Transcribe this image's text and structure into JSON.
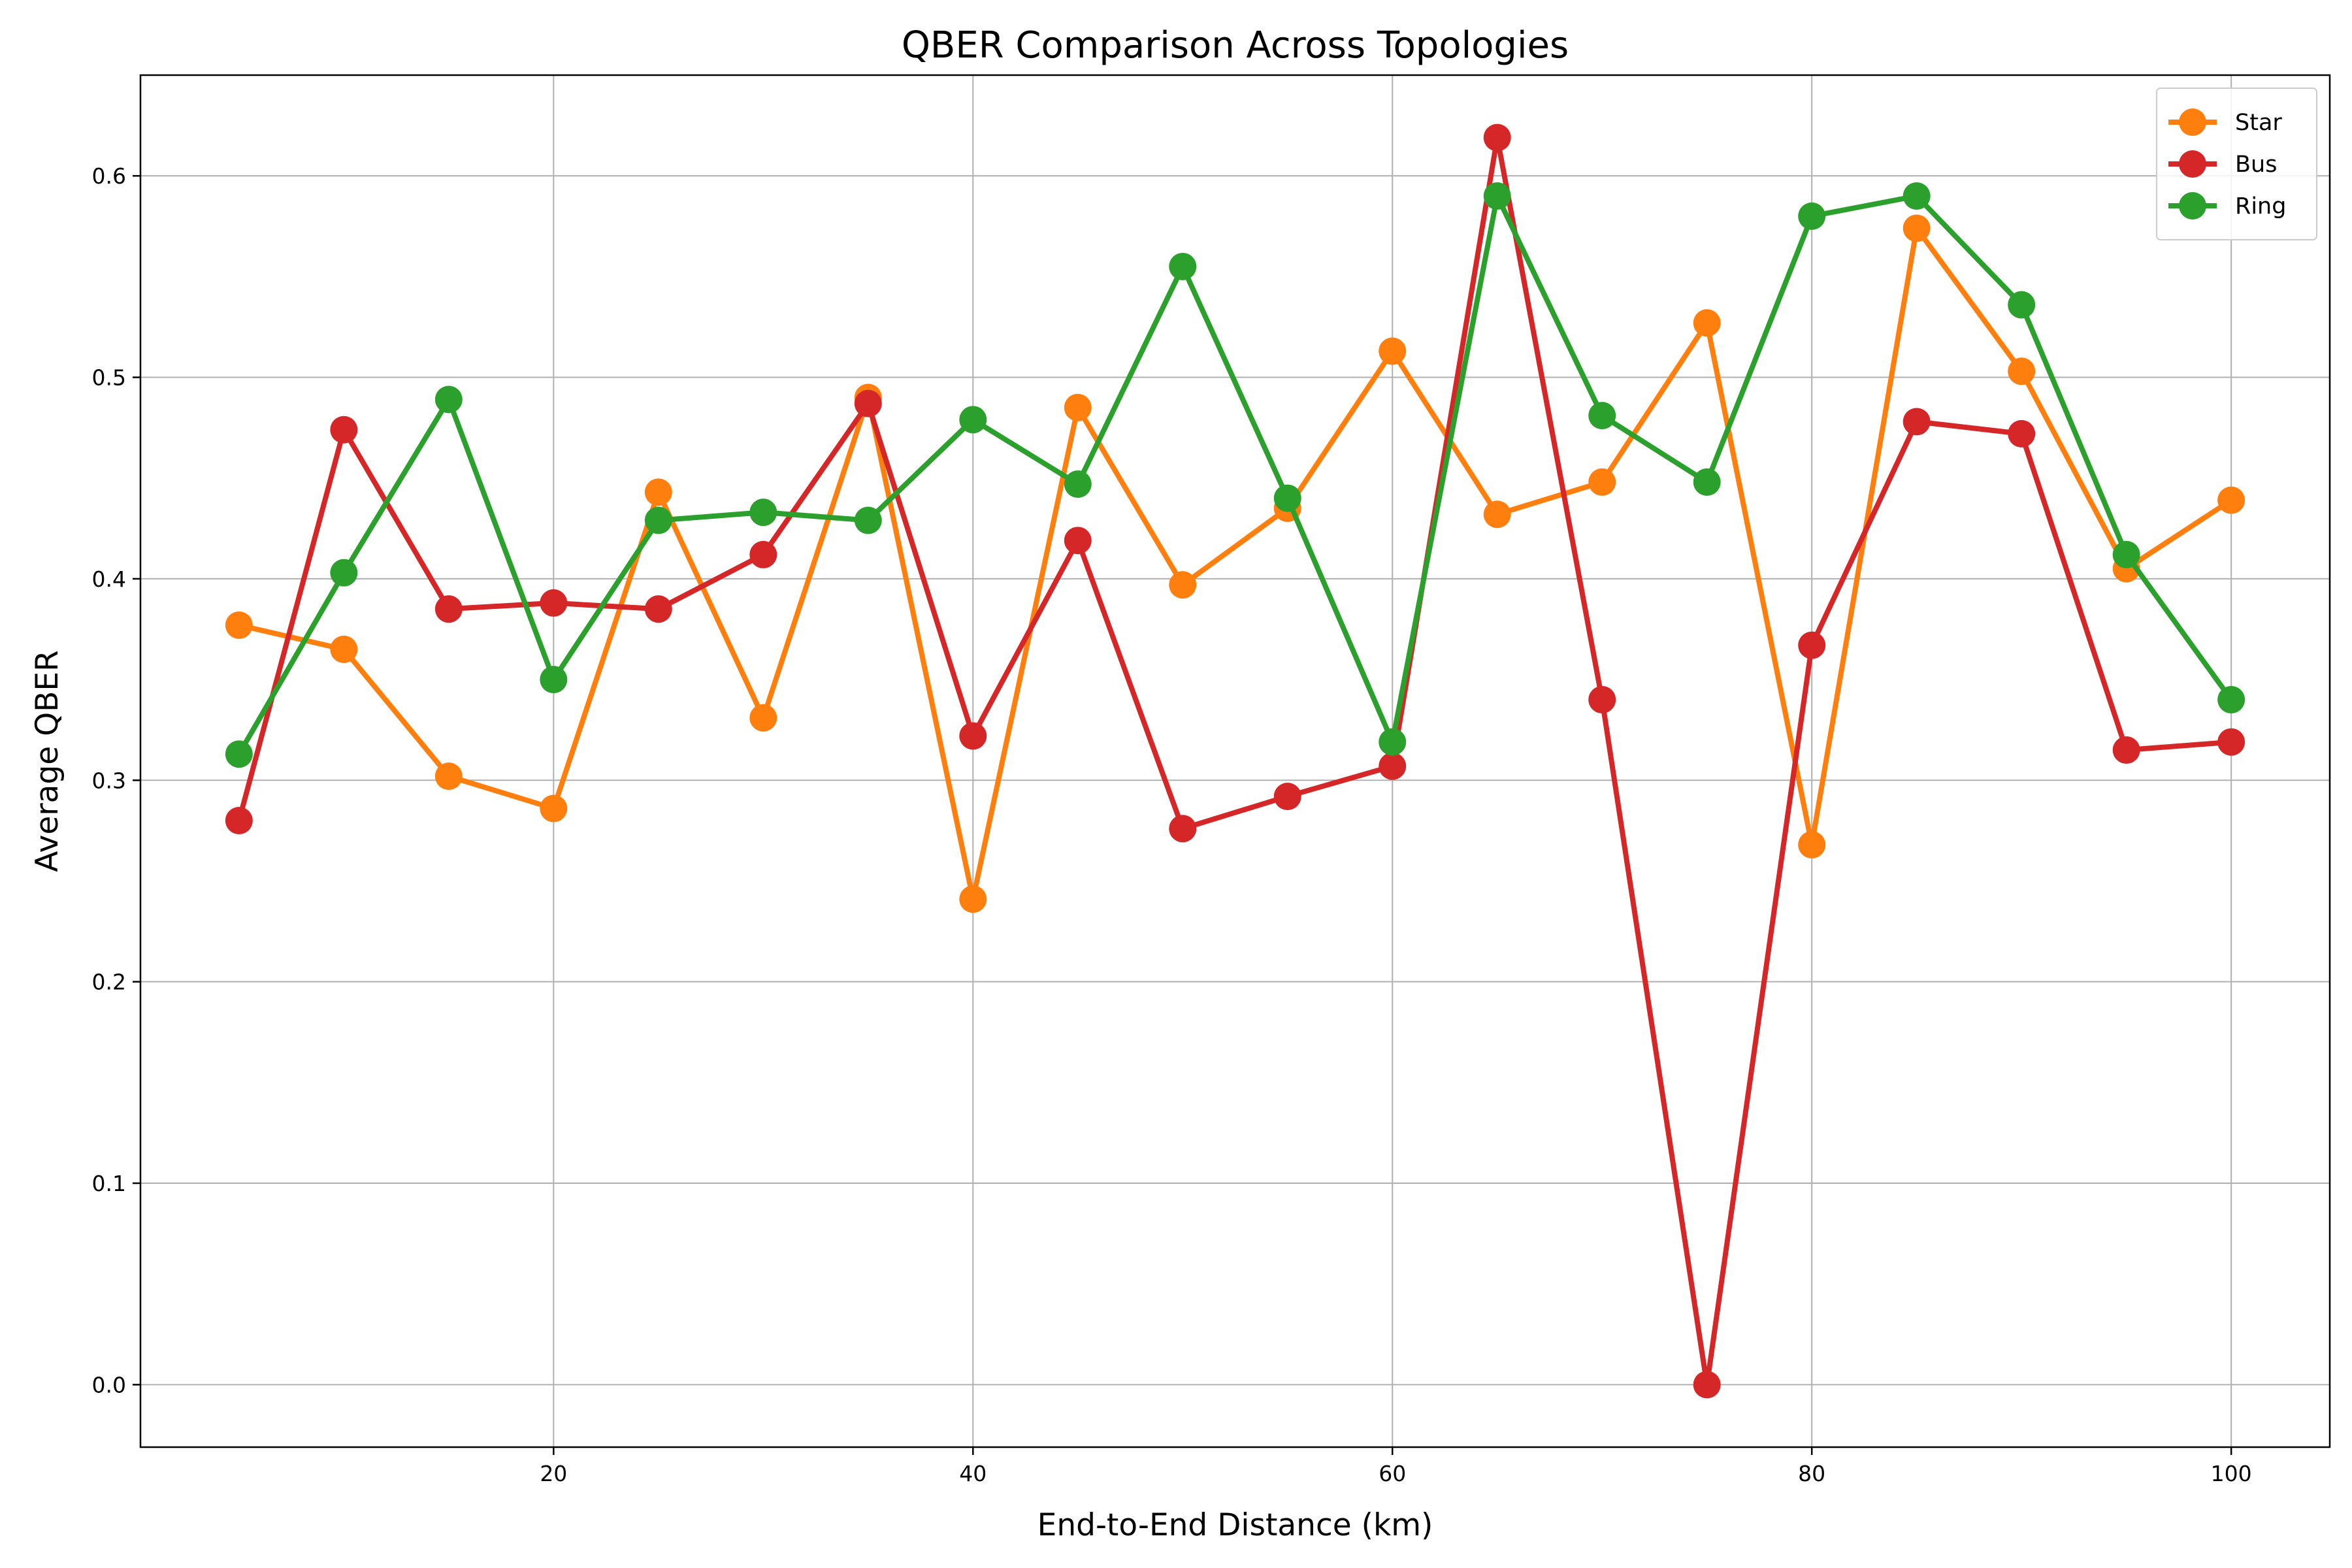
{
  "chart_data": {
    "type": "line",
    "title": "QBER Comparison Across Topologies",
    "xlabel": "End-to-End Distance (km)",
    "ylabel": "Average QBER",
    "xlim": [
      0.3,
      104.7
    ],
    "ylim": [
      -0.031,
      0.65
    ],
    "xticks": [
      20,
      40,
      60,
      80,
      100
    ],
    "yticks": [
      0.0,
      0.1,
      0.2,
      0.3,
      0.4,
      0.5,
      0.6
    ],
    "xtick_labels": [
      "20",
      "40",
      "60",
      "80",
      "100"
    ],
    "ytick_labels": [
      "0.0",
      "0.1",
      "0.2",
      "0.3",
      "0.4",
      "0.5",
      "0.6"
    ],
    "grid": true,
    "legend_position": "top-right",
    "x": [
      5,
      10,
      15,
      20,
      25,
      30,
      35,
      40,
      45,
      50,
      55,
      60,
      65,
      70,
      75,
      80,
      85,
      90,
      95,
      100
    ],
    "series": [
      {
        "name": "Star",
        "color": "#ff7f0e",
        "values": [
          0.377,
          0.365,
          0.302,
          0.286,
          0.443,
          0.331,
          0.49,
          0.241,
          0.485,
          0.397,
          0.435,
          0.513,
          0.432,
          0.448,
          0.527,
          0.268,
          0.574,
          0.503,
          0.405,
          0.439
        ]
      },
      {
        "name": "Bus",
        "color": "#d62728",
        "values": [
          0.28,
          0.474,
          0.385,
          0.388,
          0.385,
          0.412,
          0.487,
          0.322,
          0.419,
          0.276,
          0.292,
          0.307,
          0.619,
          0.34,
          0.0,
          0.367,
          0.478,
          0.472,
          0.315,
          0.319
        ]
      },
      {
        "name": "Ring",
        "color": "#2ca02c",
        "values": [
          0.313,
          0.403,
          0.489,
          0.35,
          0.429,
          0.433,
          0.429,
          0.479,
          0.447,
          0.555,
          0.44,
          0.319,
          0.59,
          0.481,
          0.448,
          0.58,
          0.59,
          0.536,
          0.412,
          0.34
        ]
      }
    ]
  }
}
